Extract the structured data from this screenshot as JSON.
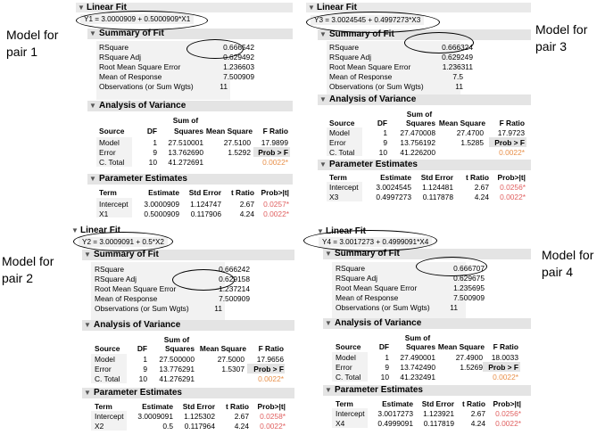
{
  "panels": [
    {
      "label": "Model for pair 1",
      "title": "Linear Fit",
      "equation": "Y1 = 3.0000909 + 0.5000909*X1",
      "summary_title": "Summary of Fit",
      "summary": [
        {
          "name": "RSquare",
          "value": "0.666542"
        },
        {
          "name": "RSquare Adj",
          "value": "0.629492"
        },
        {
          "name": "Root Mean Square Error",
          "value": "1.236603"
        },
        {
          "name": "Mean of Response",
          "value": "7.500909"
        },
        {
          "name": "Observations (or Sum Wgts)",
          "value": "11"
        }
      ],
      "anova_title": "Analysis of Variance",
      "anova_rows": [
        {
          "source": "Model",
          "df": "1",
          "ss": "27.510001",
          "ms": "27.5100",
          "f": "17.9899"
        },
        {
          "source": "Error",
          "df": "9",
          "ss": "13.762690",
          "ms": "1.5292",
          "f": "Prob > F"
        },
        {
          "source": "C. Total",
          "df": "10",
          "ss": "41.272691",
          "ms": "",
          "f": "0.0022*"
        }
      ],
      "pe_title": "Parameter Estimates",
      "pe_rows": [
        {
          "term": "Intercept",
          "est": "3.0000909",
          "se": "1.124747",
          "t": "2.67",
          "p": "0.0257*"
        },
        {
          "term": "X1",
          "est": "0.5000909",
          "se": "0.117906",
          "t": "4.24",
          "p": "0.0022*"
        }
      ]
    },
    {
      "label": "Model for pair 2",
      "title": "Linear Fit",
      "equation": "Y2 = 3.0009091 + 0.5*X2",
      "summary_title": "Summary of Fit",
      "summary": [
        {
          "name": "RSquare",
          "value": "0.666242"
        },
        {
          "name": "RSquare Adj",
          "value": "0.629158"
        },
        {
          "name": "Root Mean Square Error",
          "value": "1.237214"
        },
        {
          "name": "Mean of Response",
          "value": "7.500909"
        },
        {
          "name": "Observations (or Sum Wgts)",
          "value": "11"
        }
      ],
      "anova_title": "Analysis of Variance",
      "anova_rows": [
        {
          "source": "Model",
          "df": "1",
          "ss": "27.500000",
          "ms": "27.5000",
          "f": "17.9656"
        },
        {
          "source": "Error",
          "df": "9",
          "ss": "13.776291",
          "ms": "1.5307",
          "f": "Prob > F"
        },
        {
          "source": "C. Total",
          "df": "10",
          "ss": "41.276291",
          "ms": "",
          "f": "0.0022*"
        }
      ],
      "pe_title": "Parameter Estimates",
      "pe_rows": [
        {
          "term": "Intercept",
          "est": "3.0009091",
          "se": "1.125302",
          "t": "2.67",
          "p": "0.0258*"
        },
        {
          "term": "X2",
          "est": "0.5",
          "se": "0.117964",
          "t": "4.24",
          "p": "0.0022*"
        }
      ]
    },
    {
      "label": "Model for pair 3",
      "title": "Linear Fit",
      "equation": "Y3 = 3.0024545 + 0.4997273*X3",
      "summary_title": "Summary of Fit",
      "summary": [
        {
          "name": "RSquare",
          "value": "0.666324"
        },
        {
          "name": "RSquare Adj",
          "value": "0.629249"
        },
        {
          "name": "Root Mean Square Error",
          "value": "1.236311"
        },
        {
          "name": "Mean of Response",
          "value": "7.5"
        },
        {
          "name": "Observations (or Sum Wgts)",
          "value": "11"
        }
      ],
      "anova_title": "Analysis of Variance",
      "anova_rows": [
        {
          "source": "Model",
          "df": "1",
          "ss": "27.470008",
          "ms": "27.4700",
          "f": "17.9723"
        },
        {
          "source": "Error",
          "df": "9",
          "ss": "13.756192",
          "ms": "1.5285",
          "f": "Prob > F"
        },
        {
          "source": "C. Total",
          "df": "10",
          "ss": "41.226200",
          "ms": "",
          "f": "0.0022*"
        }
      ],
      "pe_title": "Parameter Estimates",
      "pe_rows": [
        {
          "term": "Intercept",
          "est": "3.0024545",
          "se": "1.124481",
          "t": "2.67",
          "p": "0.0256*"
        },
        {
          "term": "X3",
          "est": "0.4997273",
          "se": "0.117878",
          "t": "4.24",
          "p": "0.0022*"
        }
      ]
    },
    {
      "label": "Model for pair 4",
      "title": "Linear Fit",
      "equation": "Y4 = 3.0017273 + 0.4999091*X4",
      "summary_title": "Summary of Fit",
      "summary": [
        {
          "name": "RSquare",
          "value": "0.666707"
        },
        {
          "name": "RSquare Adj",
          "value": "0.629675"
        },
        {
          "name": "Root Mean Square Error",
          "value": "1.235695"
        },
        {
          "name": "Mean of Response",
          "value": "7.500909"
        },
        {
          "name": "Observations (or Sum Wgts)",
          "value": "11"
        }
      ],
      "anova_title": "Analysis of Variance",
      "anova_rows": [
        {
          "source": "Model",
          "df": "1",
          "ss": "27.490001",
          "ms": "27.4900",
          "f": "18.0033"
        },
        {
          "source": "Error",
          "df": "9",
          "ss": "13.742490",
          "ms": "1.5269",
          "f": "Prob > F"
        },
        {
          "source": "C. Total",
          "df": "10",
          "ss": "41.232491",
          "ms": "",
          "f": "0.0022*"
        }
      ],
      "pe_title": "Parameter Estimates",
      "pe_rows": [
        {
          "term": "Intercept",
          "est": "3.0017273",
          "se": "1.123921",
          "t": "2.67",
          "p": "0.0256*"
        },
        {
          "term": "X4",
          "est": "0.4999091",
          "se": "0.117819",
          "t": "4.24",
          "p": "0.0022*"
        }
      ]
    }
  ],
  "anova_headers": {
    "source": "Source",
    "df": "DF",
    "ss_top": "Sum of",
    "ss_bottom": "Squares",
    "ms": "Mean Square",
    "f": "F Ratio"
  },
  "pe_headers": {
    "term": "Term",
    "est": "Estimate",
    "se": "Std Error",
    "t": "t Ratio",
    "p": "Prob>|t|"
  },
  "icons": {
    "collapse": "disclosure-triangle-icon"
  },
  "colors": {
    "significant_red": "#e06060",
    "prob_orange": "#e8904a",
    "header_gray": "#e9e9e9"
  }
}
